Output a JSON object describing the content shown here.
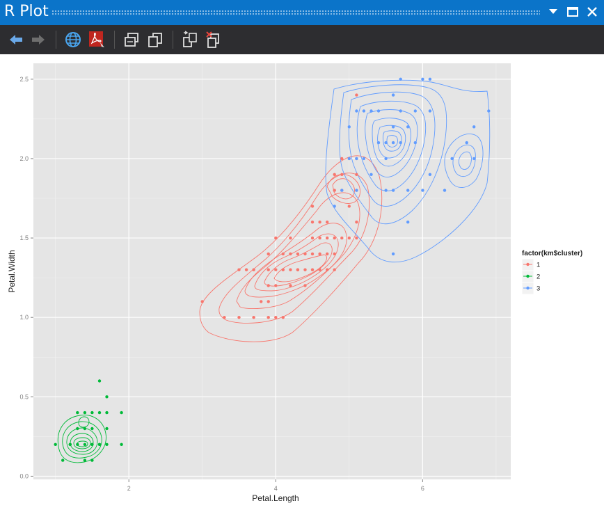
{
  "window": {
    "title": "R Plot"
  },
  "toolbar": {
    "buttons": [
      {
        "name": "back-button",
        "icon": "arrow-left-icon"
      },
      {
        "name": "forward-button",
        "icon": "arrow-right-icon"
      },
      {
        "name": "open-browser-button",
        "icon": "globe-icon"
      },
      {
        "name": "export-pdf-button",
        "icon": "pdf-icon"
      },
      {
        "name": "copy-as-bitmap-button",
        "icon": "copy-bitmap-icon"
      },
      {
        "name": "copy-as-metafile-button",
        "icon": "copy-metafile-icon"
      },
      {
        "name": "clear-plot-button",
        "icon": "remove-plot-icon"
      },
      {
        "name": "clear-all-plots-button",
        "icon": "remove-all-plots-icon"
      }
    ]
  },
  "chart_data": {
    "type": "scatter",
    "xlabel": "Petal.Length",
    "ylabel": "Petal.Width",
    "xlim": [
      0.7,
      7.2
    ],
    "ylim": [
      -0.02,
      2.6
    ],
    "xticks": [
      2,
      4,
      6
    ],
    "yticks": [
      0.0,
      0.5,
      1.0,
      1.5,
      2.0,
      2.5
    ],
    "ytick_labels": [
      "0.0",
      "0.5",
      "1.0",
      "1.5",
      "2.0",
      "2.5"
    ],
    "grid": true,
    "legend": {
      "title": "factor(km$cluster)",
      "position": "right"
    },
    "series": [
      {
        "name": "1",
        "color": "#f8766d",
        "points": [
          [
            3.0,
            1.1
          ],
          [
            3.3,
            1.0
          ],
          [
            3.5,
            1.0
          ],
          [
            3.7,
            1.0
          ],
          [
            3.9,
            1.0
          ],
          [
            4.0,
            1.0
          ],
          [
            4.1,
            1.0
          ],
          [
            3.5,
            1.3
          ],
          [
            3.6,
            1.3
          ],
          [
            3.7,
            1.3
          ],
          [
            3.8,
            1.1
          ],
          [
            3.9,
            1.1
          ],
          [
            3.9,
            1.2
          ],
          [
            3.9,
            1.4
          ],
          [
            3.9,
            1.3
          ],
          [
            4.0,
            1.3
          ],
          [
            4.0,
            1.2
          ],
          [
            4.1,
            1.3
          ],
          [
            4.2,
            1.3
          ],
          [
            4.3,
            1.3
          ],
          [
            4.4,
            1.3
          ],
          [
            4.4,
            1.4
          ],
          [
            4.5,
            1.3
          ],
          [
            4.0,
            1.5
          ],
          [
            4.1,
            1.4
          ],
          [
            4.2,
            1.4
          ],
          [
            4.2,
            1.5
          ],
          [
            4.3,
            1.4
          ],
          [
            4.4,
            1.2
          ],
          [
            4.5,
            1.5
          ],
          [
            4.5,
            1.6
          ],
          [
            4.6,
            1.5
          ],
          [
            4.6,
            1.4
          ],
          [
            4.7,
            1.4
          ],
          [
            4.7,
            1.5
          ],
          [
            4.7,
            1.6
          ],
          [
            4.8,
            1.4
          ],
          [
            4.8,
            1.5
          ],
          [
            4.8,
            1.8
          ],
          [
            4.9,
            1.8
          ],
          [
            4.9,
            1.5
          ],
          [
            5.0,
            1.7
          ],
          [
            5.1,
            1.8
          ],
          [
            5.0,
            1.5
          ],
          [
            4.5,
            1.7
          ],
          [
            4.6,
            1.3
          ],
          [
            4.7,
            1.3
          ],
          [
            4.8,
            1.3
          ],
          [
            4.5,
            1.4
          ],
          [
            4.3,
            1.3
          ],
          [
            4.9,
            2.0
          ],
          [
            5.0,
            2.0
          ],
          [
            5.1,
            1.9
          ],
          [
            5.1,
            1.5
          ],
          [
            5.1,
            1.6
          ],
          [
            5.1,
            2.0
          ],
          [
            5.1,
            2.4
          ],
          [
            4.9,
            1.9
          ],
          [
            4.8,
            1.9
          ],
          [
            4.6,
            1.6
          ],
          [
            4.2,
            1.2
          ]
        ]
      },
      {
        "name": "2",
        "color": "#00ba38",
        "points": [
          [
            1.0,
            0.2
          ],
          [
            1.1,
            0.1
          ],
          [
            1.2,
            0.2
          ],
          [
            1.3,
            0.2
          ],
          [
            1.3,
            0.3
          ],
          [
            1.3,
            0.4
          ],
          [
            1.4,
            0.1
          ],
          [
            1.4,
            0.2
          ],
          [
            1.4,
            0.3
          ],
          [
            1.5,
            0.1
          ],
          [
            1.5,
            0.2
          ],
          [
            1.5,
            0.4
          ],
          [
            1.6,
            0.2
          ],
          [
            1.6,
            0.4
          ],
          [
            1.6,
            0.6
          ],
          [
            1.7,
            0.2
          ],
          [
            1.7,
            0.3
          ],
          [
            1.7,
            0.4
          ],
          [
            1.7,
            0.5
          ],
          [
            1.9,
            0.2
          ],
          [
            1.9,
            0.4
          ],
          [
            1.2,
            0.2
          ],
          [
            1.5,
            0.3
          ],
          [
            1.4,
            0.4
          ],
          [
            1.6,
            0.2
          ],
          [
            1.5,
            0.2
          ]
        ]
      },
      {
        "name": "3",
        "color": "#619cff",
        "points": [
          [
            4.8,
            1.7
          ],
          [
            4.9,
            1.8
          ],
          [
            5.0,
            2.2
          ],
          [
            5.1,
            2.3
          ],
          [
            5.1,
            2.0
          ],
          [
            5.1,
            1.8
          ],
          [
            5.2,
            2.3
          ],
          [
            5.2,
            2.0
          ],
          [
            5.3,
            2.3
          ],
          [
            5.3,
            1.9
          ],
          [
            5.4,
            2.1
          ],
          [
            5.4,
            2.3
          ],
          [
            5.5,
            2.1
          ],
          [
            5.5,
            2.0
          ],
          [
            5.5,
            1.8
          ],
          [
            5.6,
            2.4
          ],
          [
            5.6,
            2.2
          ],
          [
            5.6,
            2.1
          ],
          [
            5.6,
            1.8
          ],
          [
            5.6,
            1.4
          ],
          [
            5.7,
            2.5
          ],
          [
            5.7,
            2.3
          ],
          [
            5.7,
            2.1
          ],
          [
            5.8,
            2.2
          ],
          [
            5.8,
            1.8
          ],
          [
            5.8,
            1.6
          ],
          [
            5.9,
            2.1
          ],
          [
            5.9,
            2.3
          ],
          [
            6.0,
            2.5
          ],
          [
            6.0,
            1.8
          ],
          [
            6.1,
            2.5
          ],
          [
            6.1,
            2.3
          ],
          [
            6.1,
            1.9
          ],
          [
            6.3,
            1.8
          ],
          [
            6.4,
            2.0
          ],
          [
            6.6,
            2.1
          ],
          [
            6.7,
            2.2
          ],
          [
            6.7,
            2.0
          ],
          [
            6.9,
            2.3
          ],
          [
            5.0,
            2.0
          ]
        ]
      }
    ]
  }
}
